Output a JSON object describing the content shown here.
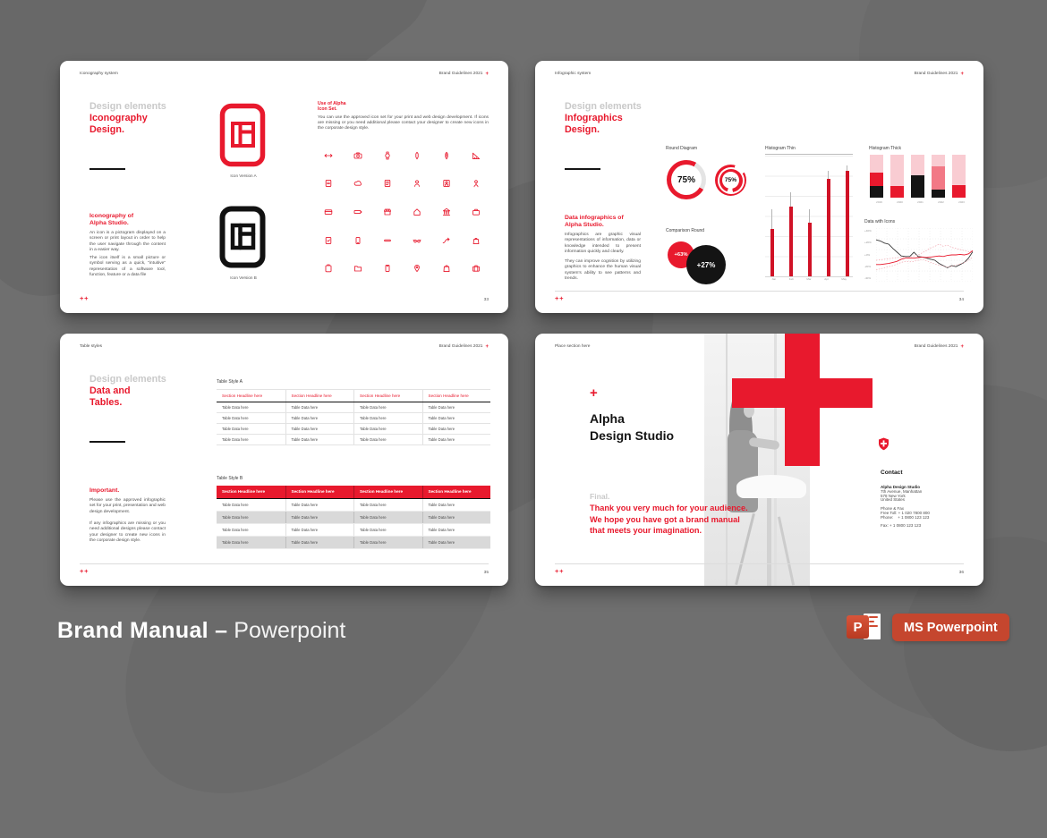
{
  "accent": "#e8192d",
  "common": {
    "header_right": "Brand Guidelines 2021",
    "plus": "+",
    "footer_mark": "++"
  },
  "footer": {
    "title_bold": "Brand Manual –",
    "title_regular": " Powerpoint",
    "badge_label": "MS Powerpoint",
    "pp_letter": "P"
  },
  "slide_iconography": {
    "header_left": "Iconography system",
    "eyebrow": "Design elements",
    "title_l1": "Iconography",
    "title_l2": "Design.",
    "subhead_l1": "Iconography of",
    "subhead_l2": "Alpha Studio.",
    "para1": "An icon is a pictogram displayed on a screen or print layout in order to help the user navigate through the content in a easier way.",
    "para2": "The icon itself is a small picture or symbol serving as a quick, “intuitive” representation of a software tool, function, feature or a data file",
    "icon_a_label": "Icon Version A",
    "icon_b_label": "Icon Version B",
    "right_head_l1": "Use of Alpha",
    "right_head_l2": "Icon Set.",
    "right_para": "You can use the approved icon set for your print and web design development. If icons are missing or you need additional please contact your designer to create new icons in the corporate design style.",
    "icon_grid": [
      "arrows",
      "camera",
      "watch",
      "pen",
      "pencil",
      "ruler",
      "file",
      "cloud",
      "document",
      "user",
      "user-badge",
      "user-pin",
      "card",
      "battery",
      "shop",
      "home",
      "bank",
      "briefcase",
      "file-check",
      "mobile",
      "minus",
      "glasses",
      "route",
      "bag",
      "clipboard",
      "folder",
      "phone",
      "location-pin",
      "shopping-bag",
      "suitcase"
    ],
    "page_no": "33"
  },
  "slide_infographics": {
    "header_left": "Infographic system",
    "eyebrow": "Design elements",
    "title_l1": "Infographics",
    "title_l2": "Design.",
    "subhead_l1": "Data infographics of",
    "subhead_l2": "Alpha Studio.",
    "para1": "Infographics are graphic visual representations of information, data or knowledge intended to present information quickly and clearly.",
    "para2": "They can improve cognition by utilizing graphics to enhance the human visual system's ability to see patterns and trends.",
    "page_no": "34"
  },
  "slide_tables": {
    "header_left": "Table styles",
    "eyebrow": "Design elements",
    "title_l1": "Data and",
    "title_l2": "Tables.",
    "subhead": "Important.",
    "para1": "Please use the approved infographic set for your print, presentation and web design development.",
    "para2": "If any infographics are missing or you need additional designs please contact your designer to create new icons in the corporate design style.",
    "table_a_label": "Table Style A",
    "table_b_label": "Table Style B",
    "table": {
      "headline": "Section Headline here",
      "cell": "Table Data here",
      "cols": 4,
      "rows": 4
    },
    "page_no": "35"
  },
  "slide_final": {
    "header_left": "Place section here",
    "plus_mark": "+",
    "title_l1": "Alpha",
    "title_l2": "Design Studio",
    "final_label": "Final.",
    "msg_l1": "Thank you very much for your audience.",
    "msg_l2": "We hope you have got a brand manual",
    "msg_l3": "that meets your imagination.",
    "contact_title": "Contact",
    "company": "Alpha Design Studio",
    "address_l1": "7th Avenue, Manhattan",
    "address_l2": "578 New York",
    "address_l3": "United States",
    "phone_fax_label": "Phone & Fax",
    "free_toll": "Free Toll: + 1 020 7800 800",
    "phone": "Phone:    + 1 0800 123 123",
    "fax": "Fax: + 1 0800 123 123",
    "page_no": "36"
  },
  "chart_data": [
    {
      "type": "pie",
      "title": "Round Diagram",
      "style": "donut",
      "values": [
        {
          "label": "75%",
          "value": 75
        },
        {
          "label": "75%",
          "value": 75
        }
      ]
    },
    {
      "type": "pie",
      "title": "Comparison Round",
      "style": "bubbles",
      "values": [
        {
          "label": "+63%",
          "value": 63,
          "color": "#e8192d"
        },
        {
          "label": "+27%",
          "value": 27,
          "color": "#141414"
        }
      ]
    },
    {
      "type": "bar",
      "title": "Histogram Thin",
      "categories": [
        "Jan",
        "Feb",
        "Mar",
        "Apr",
        "May"
      ],
      "series": [
        {
          "name": "value",
          "color": "#d01226",
          "values": [
            39,
            57,
            44,
            80,
            87
          ]
        },
        {
          "name": "range",
          "color": "#b5b5b5",
          "values": [
            55,
            69,
            55,
            87,
            91
          ]
        }
      ],
      "ylim": [
        0,
        100
      ]
    },
    {
      "type": "bar",
      "title": "Histogram Thick",
      "stacked": true,
      "categories": [
        "2019",
        "2020",
        "2021",
        "2022",
        "2023"
      ],
      "series": [
        {
          "name": "black",
          "color": "#141414",
          "values": [
            28,
            0,
            53,
            18,
            0
          ]
        },
        {
          "name": "red",
          "color": "#e8192d",
          "values": [
            30,
            28,
            0,
            0,
            30
          ]
        },
        {
          "name": "rose",
          "color": "#f27986",
          "values": [
            0,
            0,
            0,
            55,
            0
          ]
        },
        {
          "name": "pink",
          "color": "#f9ccd2",
          "values": [
            42,
            72,
            47,
            27,
            70
          ]
        }
      ],
      "ylim": [
        0,
        100
      ]
    },
    {
      "type": "line",
      "title": "Data with Icons",
      "yticks": [
        "+40%",
        "+20%",
        "+0%",
        "-20%",
        "-40%"
      ],
      "series": [
        {
          "name": "dark",
          "color": "#3a3a3a",
          "dashed": false,
          "points": [
            78,
            76,
            72,
            70,
            62,
            55,
            48,
            47,
            47,
            55,
            47,
            46,
            44,
            42,
            40,
            34,
            30,
            26,
            30,
            28,
            32,
            36,
            44,
            56
          ]
        },
        {
          "name": "red",
          "color": "#e8192d",
          "dashed": false,
          "points": [
            32,
            32,
            33,
            34,
            36,
            38,
            42,
            44,
            44,
            44,
            45,
            46,
            45,
            46,
            47,
            48,
            47,
            49,
            50,
            50,
            51,
            50,
            52,
            58
          ]
        },
        {
          "name": "pink-high",
          "color": "#f2a9b2",
          "dashed": true,
          "points": [
            40,
            41,
            42,
            43,
            44,
            45,
            46,
            45,
            46,
            48,
            50,
            54,
            58,
            63,
            66,
            70,
            66,
            68,
            64,
            62,
            60,
            58,
            56,
            58
          ]
        },
        {
          "name": "pink-low",
          "color": "#f2a9b2",
          "dashed": true,
          "points": [
            22,
            24,
            26,
            28,
            30,
            33,
            36,
            38,
            37,
            38,
            40,
            42,
            39,
            36,
            33,
            31,
            29,
            27,
            29,
            31,
            33,
            36,
            40,
            46
          ]
        }
      ]
    }
  ]
}
